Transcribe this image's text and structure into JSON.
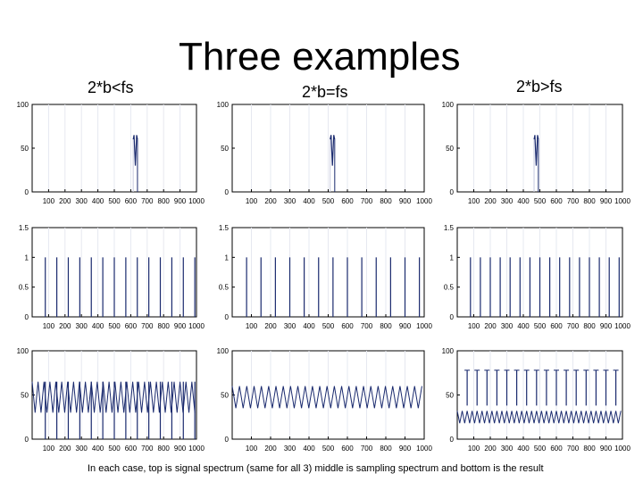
{
  "title": "Three examples",
  "columns": [
    "2*b<fs",
    "2*b=fs",
    "2*b>fs"
  ],
  "caption": "In each case, top is signal spectrum (same for all 3) middle is sampling spectrum and bottom is the result",
  "chart_data": [
    {
      "type": "line",
      "panel": "top-left",
      "x_ticks": [
        100,
        200,
        300,
        400,
        500,
        600,
        700,
        800,
        900,
        1000
      ],
      "y_ticks": [
        "0",
        "50",
        "100"
      ],
      "ylim": [
        0,
        100
      ],
      "series": [
        {
          "x": [
            615,
            620,
            628,
            636,
            641
          ],
          "y": [
            60,
            65,
            30,
            65,
            60
          ]
        }
      ]
    },
    {
      "type": "line",
      "panel": "top-middle",
      "x_ticks": [
        100,
        200,
        300,
        400,
        500,
        600,
        700,
        800,
        900,
        1000
      ],
      "y_ticks": [
        "0",
        "50",
        "100"
      ],
      "ylim": [
        0,
        100
      ],
      "series": [
        {
          "x": [
            510,
            515,
            522,
            529,
            534
          ],
          "y": [
            60,
            65,
            30,
            65,
            60
          ]
        }
      ]
    },
    {
      "type": "line",
      "panel": "top-right",
      "x_ticks": [
        100,
        200,
        300,
        400,
        500,
        600,
        700,
        800,
        900,
        1000
      ],
      "y_ticks": [
        "0",
        "50",
        "100"
      ],
      "ylim": [
        0,
        100
      ],
      "series": [
        {
          "x": [
            465,
            470,
            478,
            486,
            491
          ],
          "y": [
            60,
            65,
            30,
            65,
            60
          ]
        }
      ]
    },
    {
      "type": "bar",
      "panel": "middle-left",
      "x_ticks": [
        100,
        200,
        300,
        400,
        500,
        600,
        700,
        800,
        900,
        1000
      ],
      "y_ticks": [
        "0",
        "0.5",
        "1",
        "1.5"
      ],
      "ylim": [
        0,
        1.5
      ],
      "x": [
        80,
        150,
        220,
        290,
        360,
        430,
        500,
        570,
        640,
        710,
        780,
        850,
        920,
        990
      ],
      "values": [
        1,
        1,
        1,
        1,
        1,
        1,
        1,
        1,
        1,
        1,
        1,
        1,
        1,
        1
      ]
    },
    {
      "type": "bar",
      "panel": "middle-middle",
      "x_ticks": [
        100,
        200,
        300,
        400,
        500,
        600,
        700,
        800,
        900,
        1000
      ],
      "y_ticks": [
        "0",
        "0.5",
        "1",
        "1.5"
      ],
      "ylim": [
        0,
        1.5
      ],
      "x": [
        75,
        150,
        225,
        300,
        375,
        450,
        525,
        600,
        675,
        750,
        825,
        900,
        975
      ],
      "values": [
        1,
        1,
        1,
        1,
        1,
        1,
        1,
        1,
        1,
        1,
        1,
        1,
        1
      ]
    },
    {
      "type": "bar",
      "panel": "middle-right",
      "x_ticks": [
        100,
        200,
        300,
        400,
        500,
        600,
        700,
        800,
        900,
        1000
      ],
      "y_ticks": [
        "0",
        "0.5",
        "1",
        "1.5"
      ],
      "ylim": [
        0,
        1.5
      ],
      "x": [
        80,
        140,
        200,
        260,
        320,
        380,
        440,
        500,
        560,
        620,
        680,
        740,
        800,
        860,
        920,
        980
      ],
      "values": [
        1,
        1,
        1,
        1,
        1,
        1,
        1,
        1,
        1,
        1,
        1,
        1,
        1,
        1,
        1,
        1
      ]
    },
    {
      "type": "line",
      "panel": "bottom-left",
      "x_ticks": [
        100,
        200,
        300,
        400,
        500,
        600,
        700,
        800,
        900,
        1000
      ],
      "y_ticks": [
        "0",
        "50",
        "100"
      ],
      "ylim": [
        0,
        100
      ],
      "wave": {
        "x_start": 0,
        "x_end": 1000,
        "period": 36,
        "high": 65,
        "low": 30
      },
      "bars": {
        "x": [
          80,
          150,
          220,
          290,
          360,
          430,
          500,
          570,
          640,
          710,
          780,
          850,
          920,
          990
        ],
        "top": 65
      }
    },
    {
      "type": "line",
      "panel": "bottom-middle",
      "x_ticks": [
        100,
        200,
        300,
        400,
        500,
        600,
        700,
        800,
        900,
        1000
      ],
      "y_ticks": [
        "0",
        "50",
        "100"
      ],
      "ylim": [
        0,
        100
      ],
      "wave": {
        "x_start": 0,
        "x_end": 1000,
        "period": 38,
        "high": 60,
        "low": 35
      }
    },
    {
      "type": "line",
      "panel": "bottom-right",
      "x_ticks": [
        100,
        200,
        300,
        400,
        500,
        600,
        700,
        800,
        900,
        1000
      ],
      "y_ticks": [
        "0",
        "50",
        "100"
      ],
      "ylim": [
        0,
        100
      ],
      "wave": {
        "x_start": 0,
        "x_end": 1000,
        "period": 30,
        "high": 32,
        "low": 18
      },
      "bars": {
        "x": [
          60,
          120,
          180,
          240,
          300,
          360,
          420,
          480,
          540,
          600,
          660,
          720,
          780,
          840,
          900,
          960
        ],
        "top": 78,
        "bottom": 38
      }
    }
  ]
}
